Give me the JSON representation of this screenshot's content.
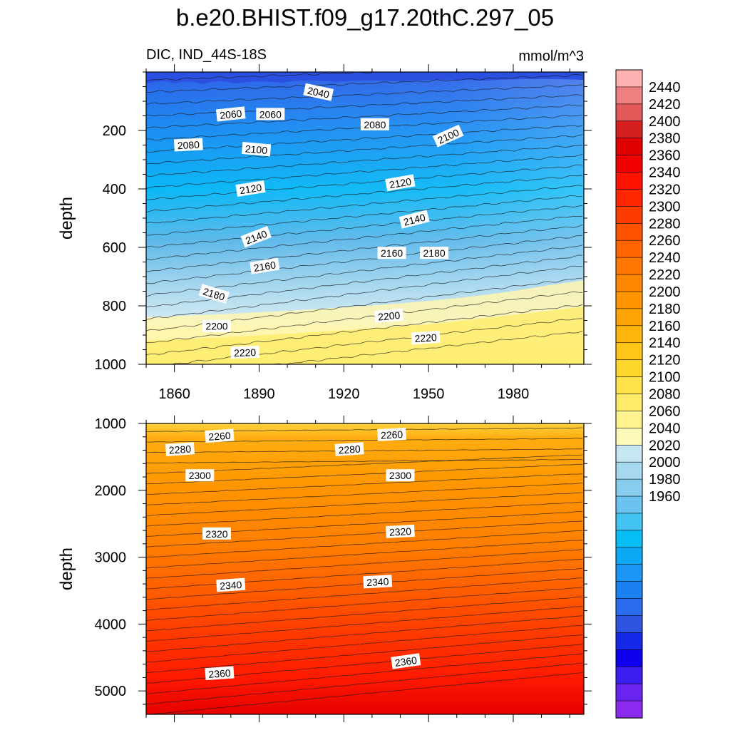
{
  "chart_data": {
    "type": "contour",
    "title": "b.e20.BHIST.f09_g17.20thC.297_05",
    "variable": "DIC, IND_44S-18S",
    "units": "mmol/m^3",
    "ylabel": "depth",
    "xlim": [
      1850,
      2005
    ],
    "xticks": [
      1860,
      1890,
      1920,
      1950,
      1980
    ],
    "panels": [
      {
        "name": "upper",
        "ylim": [
          0,
          1000
        ],
        "yticks": [
          200,
          400,
          600,
          800,
          1000
        ],
        "contour_labels": [
          {
            "x": 1911,
            "y": 70,
            "text": "2040",
            "angle": 12
          },
          {
            "x": 1880,
            "y": 145,
            "text": "2060",
            "angle": -6
          },
          {
            "x": 1894,
            "y": 145,
            "text": "2060",
            "angle": 0
          },
          {
            "x": 1931,
            "y": 180,
            "text": "2080",
            "angle": 0
          },
          {
            "x": 1865,
            "y": 250,
            "text": "2080",
            "angle": -3
          },
          {
            "x": 1957,
            "y": 220,
            "text": "2100",
            "angle": -24
          },
          {
            "x": 1889,
            "y": 265,
            "text": "2100",
            "angle": 5
          },
          {
            "x": 1940,
            "y": 380,
            "text": "2120",
            "angle": -10
          },
          {
            "x": 1887,
            "y": 400,
            "text": "2120",
            "angle": -9
          },
          {
            "x": 1945,
            "y": 505,
            "text": "2140",
            "angle": -14
          },
          {
            "x": 1889,
            "y": 565,
            "text": "2140",
            "angle": -21
          },
          {
            "x": 1937,
            "y": 620,
            "text": "2160",
            "angle": 0
          },
          {
            "x": 1892,
            "y": 665,
            "text": "2160",
            "angle": -9
          },
          {
            "x": 1952,
            "y": 620,
            "text": "2180",
            "angle": 0
          },
          {
            "x": 1874,
            "y": 760,
            "text": "2180",
            "angle": 17
          },
          {
            "x": 1936,
            "y": 835,
            "text": "2200",
            "angle": -5
          },
          {
            "x": 1875,
            "y": 870,
            "text": "2200",
            "angle": 0
          },
          {
            "x": 1949,
            "y": 910,
            "text": "2220",
            "angle": -4
          },
          {
            "x": 1885,
            "y": 960,
            "text": "2220",
            "angle": -2
          }
        ]
      },
      {
        "name": "lower",
        "ylim": [
          1000,
          5350
        ],
        "yticks": [
          1000,
          2000,
          3000,
          4000,
          5000
        ],
        "contour_labels": [
          {
            "x": 1876,
            "y": 1190,
            "text": "2260",
            "angle": -4
          },
          {
            "x": 1937,
            "y": 1170,
            "text": "2260",
            "angle": -3
          },
          {
            "x": 1862,
            "y": 1390,
            "text": "2280",
            "angle": -4
          },
          {
            "x": 1922,
            "y": 1390,
            "text": "2280",
            "angle": -4
          },
          {
            "x": 1869,
            "y": 1780,
            "text": "2300",
            "angle": 0
          },
          {
            "x": 1940,
            "y": 1780,
            "text": "2300",
            "angle": 0
          },
          {
            "x": 1875,
            "y": 2650,
            "text": "2320",
            "angle": 0
          },
          {
            "x": 1940,
            "y": 2620,
            "text": "2320",
            "angle": -3
          },
          {
            "x": 1880,
            "y": 3420,
            "text": "2340",
            "angle": -4
          },
          {
            "x": 1932,
            "y": 3370,
            "text": "2340",
            "angle": -3
          },
          {
            "x": 1876,
            "y": 4740,
            "text": "2360",
            "angle": -4
          },
          {
            "x": 1942,
            "y": 4560,
            "text": "2360",
            "angle": -8
          }
        ]
      }
    ],
    "colorbar": {
      "levels": [
        1960,
        1980,
        2000,
        2020,
        2040,
        2060,
        2080,
        2100,
        2120,
        2140,
        2160,
        2180,
        2200,
        2220,
        2240,
        2260,
        2280,
        2300,
        2320,
        2340,
        2360,
        2380,
        2400,
        2420,
        2440
      ],
      "colors": [
        "#8b2bf0",
        "#6a24f0",
        "#3a1ff0",
        "#1000f0",
        "#1428e8",
        "#2e53e0",
        "#2a6cec",
        "#1b80f0",
        "#1a94f5",
        "#0aa8f5",
        "#06bdf5",
        "#43c3f2",
        "#6bc4ef",
        "#89cdee",
        "#a6d9f0",
        "#c6e6f2",
        "#fff9b8",
        "#fff28f",
        "#ffea6a",
        "#ffe24a",
        "#ffd62b",
        "#ffc618",
        "#ffb60c",
        "#ffa406",
        "#ff9400",
        "#ff8600",
        "#ff7600",
        "#ff6600",
        "#ff5200",
        "#ff3c00",
        "#ff2600",
        "#ff1200",
        "#f00000",
        "#e00000",
        "#d62020",
        "#e35858",
        "#ef8080",
        "#ffb0b0"
      ],
      "labels": [
        "1960",
        "1980",
        "2000",
        "2020",
        "2040",
        "2060",
        "2080",
        "2100",
        "2120",
        "2140",
        "2160",
        "2180",
        "2200",
        "2220",
        "2240",
        "2260",
        "2280",
        "2300",
        "2320",
        "2340",
        "2360",
        "2380",
        "2400",
        "2420",
        "2440"
      ]
    }
  }
}
